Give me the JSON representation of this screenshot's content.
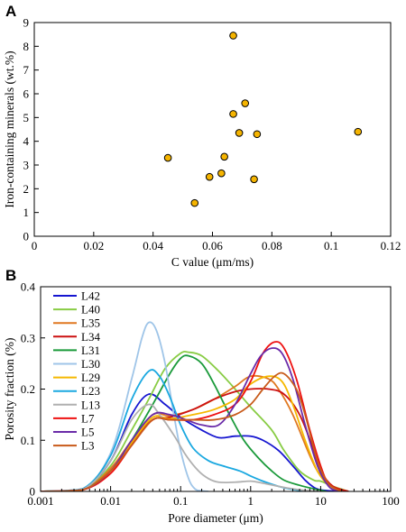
{
  "chart_data": [
    {
      "panel": "A",
      "type": "scatter",
      "xlabel": "C value (μm/ms)",
      "ylabel": "Iron-containing minerals (wt.%)",
      "xlim": [
        0,
        0.12
      ],
      "ylim": [
        0,
        9
      ],
      "x_ticks": [
        "0",
        "0.02",
        "0.04",
        "0.06",
        "0.08",
        "0.1",
        "0.12"
      ],
      "y_ticks": [
        "0",
        "1",
        "2",
        "3",
        "4",
        "5",
        "6",
        "7",
        "8",
        "9"
      ],
      "marker_color": "#f5b400",
      "points": [
        {
          "x": 0.045,
          "y": 3.3
        },
        {
          "x": 0.054,
          "y": 1.4
        },
        {
          "x": 0.059,
          "y": 2.5
        },
        {
          "x": 0.063,
          "y": 2.65
        },
        {
          "x": 0.064,
          "y": 3.35
        },
        {
          "x": 0.067,
          "y": 5.15
        },
        {
          "x": 0.067,
          "y": 8.45
        },
        {
          "x": 0.069,
          "y": 4.35
        },
        {
          "x": 0.071,
          "y": 5.6
        },
        {
          "x": 0.074,
          "y": 2.4
        },
        {
          "x": 0.075,
          "y": 4.3
        },
        {
          "x": 0.109,
          "y": 4.4
        }
      ]
    },
    {
      "panel": "B",
      "type": "line",
      "xscale": "log",
      "xlabel": "Pore diameter (μm)",
      "ylabel": "Porosity fraction (%)",
      "xlim": [
        0.001,
        100
      ],
      "ylim": [
        0,
        0.4
      ],
      "x_ticks": [
        "0.001",
        "0.01",
        "0.1",
        "1",
        "10",
        "100"
      ],
      "y_ticks": [
        "0",
        "0.1",
        "0.2",
        "0.3",
        "0.4"
      ],
      "legend_position": "top-left",
      "series": [
        {
          "name": "L42",
          "color": "#1515d0",
          "x": [
            0.001,
            0.004,
            0.01,
            0.02,
            0.035,
            0.06,
            0.1,
            0.2,
            0.35,
            0.6,
            1,
            1.5,
            2.5,
            4,
            6,
            8,
            10,
            14,
            18
          ],
          "y": [
            0,
            0.004,
            0.06,
            0.15,
            0.19,
            0.17,
            0.145,
            0.12,
            0.105,
            0.108,
            0.108,
            0.1,
            0.08,
            0.05,
            0.022,
            0.008,
            0.003,
            0.001,
            0
          ]
        },
        {
          "name": "L40",
          "color": "#88cc44",
          "x": [
            0.001,
            0.004,
            0.01,
            0.02,
            0.035,
            0.06,
            0.1,
            0.13,
            0.2,
            0.35,
            0.6,
            1,
            2,
            3,
            5,
            8,
            10,
            15,
            25
          ],
          "y": [
            0,
            0.004,
            0.05,
            0.12,
            0.18,
            0.24,
            0.27,
            0.272,
            0.265,
            0.235,
            0.2,
            0.165,
            0.12,
            0.08,
            0.04,
            0.022,
            0.02,
            0.01,
            0
          ]
        },
        {
          "name": "L35",
          "color": "#e07820",
          "x": [
            0.001,
            0.004,
            0.01,
            0.02,
            0.04,
            0.07,
            0.15,
            0.3,
            0.6,
            1,
            1.8,
            2.5,
            4,
            7,
            10,
            15,
            25
          ],
          "y": [
            0,
            0.004,
            0.045,
            0.1,
            0.15,
            0.148,
            0.16,
            0.18,
            0.205,
            0.225,
            0.22,
            0.2,
            0.15,
            0.07,
            0.03,
            0.01,
            0
          ]
        },
        {
          "name": "L34",
          "color": "#cc1010",
          "x": [
            0.001,
            0.004,
            0.01,
            0.02,
            0.04,
            0.07,
            0.15,
            0.3,
            0.6,
            1,
            1.8,
            3,
            5,
            8,
            10,
            15,
            25
          ],
          "y": [
            0,
            0.004,
            0.04,
            0.095,
            0.14,
            0.145,
            0.16,
            0.18,
            0.195,
            0.2,
            0.2,
            0.19,
            0.15,
            0.08,
            0.04,
            0.01,
            0
          ]
        },
        {
          "name": "L31",
          "color": "#1a9a3a",
          "x": [
            0.001,
            0.004,
            0.01,
            0.02,
            0.04,
            0.07,
            0.1,
            0.13,
            0.2,
            0.3,
            0.5,
            0.8,
            1.3,
            2,
            3,
            5,
            8,
            12
          ],
          "y": [
            0,
            0.004,
            0.04,
            0.1,
            0.17,
            0.23,
            0.26,
            0.265,
            0.25,
            0.21,
            0.15,
            0.1,
            0.065,
            0.04,
            0.022,
            0.012,
            0.005,
            0
          ]
        },
        {
          "name": "L30",
          "color": "#9fc5e8",
          "x": [
            0.001,
            0.004,
            0.01,
            0.02,
            0.028,
            0.035,
            0.045,
            0.06,
            0.08,
            0.1,
            0.13,
            0.16,
            0.2,
            0.25
          ],
          "y": [
            0,
            0.005,
            0.075,
            0.22,
            0.3,
            0.33,
            0.315,
            0.25,
            0.15,
            0.08,
            0.025,
            0.005,
            0.001,
            0
          ]
        },
        {
          "name": "L29",
          "color": "#f5b800",
          "x": [
            0.001,
            0.004,
            0.01,
            0.02,
            0.04,
            0.07,
            0.15,
            0.3,
            0.6,
            1,
            1.8,
            2.8,
            4,
            6,
            9,
            13,
            20
          ],
          "y": [
            0,
            0.003,
            0.04,
            0.095,
            0.145,
            0.142,
            0.15,
            0.16,
            0.18,
            0.21,
            0.225,
            0.215,
            0.17,
            0.1,
            0.04,
            0.012,
            0
          ]
        },
        {
          "name": "L23",
          "color": "#1aa8e0",
          "x": [
            0.001,
            0.004,
            0.01,
            0.02,
            0.035,
            0.05,
            0.07,
            0.1,
            0.15,
            0.25,
            0.4,
            0.7,
            1,
            1.5,
            2.5,
            4,
            6,
            9
          ],
          "y": [
            0,
            0.005,
            0.07,
            0.18,
            0.235,
            0.225,
            0.185,
            0.13,
            0.085,
            0.06,
            0.05,
            0.04,
            0.03,
            0.02,
            0.01,
            0.004,
            0.001,
            0
          ]
        },
        {
          "name": "L13",
          "color": "#b0b0b0",
          "x": [
            0.001,
            0.004,
            0.01,
            0.02,
            0.035,
            0.05,
            0.08,
            0.12,
            0.18,
            0.25,
            0.35,
            0.6,
            1,
            1.5,
            2.5,
            4,
            6,
            10
          ],
          "y": [
            0,
            0.004,
            0.06,
            0.14,
            0.17,
            0.15,
            0.11,
            0.07,
            0.04,
            0.025,
            0.018,
            0.018,
            0.02,
            0.016,
            0.01,
            0.005,
            0.002,
            0
          ]
        },
        {
          "name": "L7",
          "color": "#ee1010",
          "x": [
            0.001,
            0.004,
            0.01,
            0.02,
            0.04,
            0.07,
            0.15,
            0.3,
            0.6,
            1,
            1.5,
            2.2,
            3,
            4.5,
            7,
            10,
            13,
            20
          ],
          "y": [
            0,
            0.003,
            0.035,
            0.09,
            0.14,
            0.14,
            0.14,
            0.15,
            0.17,
            0.215,
            0.27,
            0.292,
            0.28,
            0.22,
            0.12,
            0.05,
            0.015,
            0
          ]
        },
        {
          "name": "L5",
          "color": "#6a2ba8",
          "x": [
            0.001,
            0.004,
            0.01,
            0.02,
            0.04,
            0.07,
            0.12,
            0.2,
            0.35,
            0.6,
            1,
            1.4,
            2,
            2.8,
            4,
            6,
            9,
            13,
            18
          ],
          "y": [
            0,
            0.003,
            0.04,
            0.1,
            0.15,
            0.15,
            0.14,
            0.13,
            0.13,
            0.17,
            0.23,
            0.265,
            0.28,
            0.27,
            0.22,
            0.13,
            0.05,
            0.01,
            0
          ]
        },
        {
          "name": "L3",
          "color": "#c85a1a",
          "x": [
            0.001,
            0.004,
            0.01,
            0.02,
            0.04,
            0.07,
            0.15,
            0.3,
            0.6,
            1,
            1.5,
            2.2,
            3,
            4.5,
            6,
            9,
            13,
            20
          ],
          "y": [
            0,
            0.003,
            0.04,
            0.09,
            0.14,
            0.14,
            0.14,
            0.14,
            0.15,
            0.17,
            0.2,
            0.225,
            0.23,
            0.2,
            0.15,
            0.06,
            0.015,
            0
          ]
        }
      ]
    }
  ]
}
